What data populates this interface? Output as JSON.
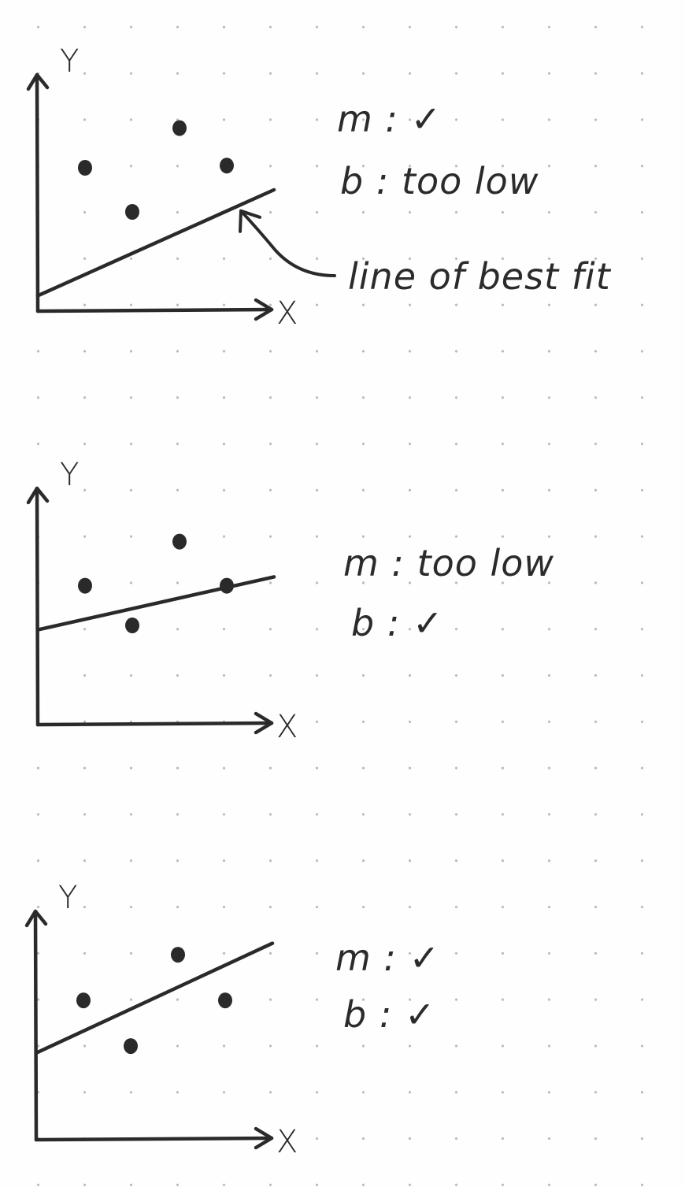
{
  "ink_color": "#2a2a2a",
  "chart_data": [
    {
      "type": "scatter",
      "title": "",
      "xlabel": "X",
      "ylabel": "Y",
      "xlim": [
        0,
        10
      ],
      "ylim": [
        0,
        10
      ],
      "grid": false,
      "points": [
        {
          "x": 2,
          "y": 6.5
        },
        {
          "x": 4,
          "y": 4.5
        },
        {
          "x": 6,
          "y": 8.3
        },
        {
          "x": 8,
          "y": 6.6
        }
      ],
      "line": {
        "slope": 0.48,
        "intercept": 0.7
      },
      "annotation": "line of best fit",
      "notes": [
        {
          "symbol": "m",
          "verdict": "✓"
        },
        {
          "symbol": "b",
          "verdict": "too low"
        }
      ]
    },
    {
      "type": "scatter",
      "title": "",
      "xlabel": "X",
      "ylabel": "Y",
      "xlim": [
        0,
        10
      ],
      "ylim": [
        0,
        10
      ],
      "grid": false,
      "points": [
        {
          "x": 2,
          "y": 6.3
        },
        {
          "x": 4,
          "y": 4.5
        },
        {
          "x": 6,
          "y": 8.3
        },
        {
          "x": 8,
          "y": 6.3
        }
      ],
      "line": {
        "slope": 0.24,
        "intercept": 4.3
      },
      "annotation": "",
      "notes": [
        {
          "symbol": "m",
          "verdict": "too low"
        },
        {
          "symbol": "b",
          "verdict": "✓"
        }
      ]
    },
    {
      "type": "scatter",
      "title": "",
      "xlabel": "X",
      "ylabel": "Y",
      "xlim": [
        0,
        10
      ],
      "ylim": [
        0,
        10
      ],
      "grid": false,
      "points": [
        {
          "x": 2,
          "y": 6.1
        },
        {
          "x": 4,
          "y": 4.1
        },
        {
          "x": 6,
          "y": 8.1
        },
        {
          "x": 8,
          "y": 6.1
        }
      ],
      "line": {
        "slope": 0.48,
        "intercept": 3.8
      },
      "annotation": "",
      "notes": [
        {
          "symbol": "m",
          "verdict": "✓"
        },
        {
          "symbol": "b",
          "verdict": "✓"
        }
      ]
    }
  ]
}
